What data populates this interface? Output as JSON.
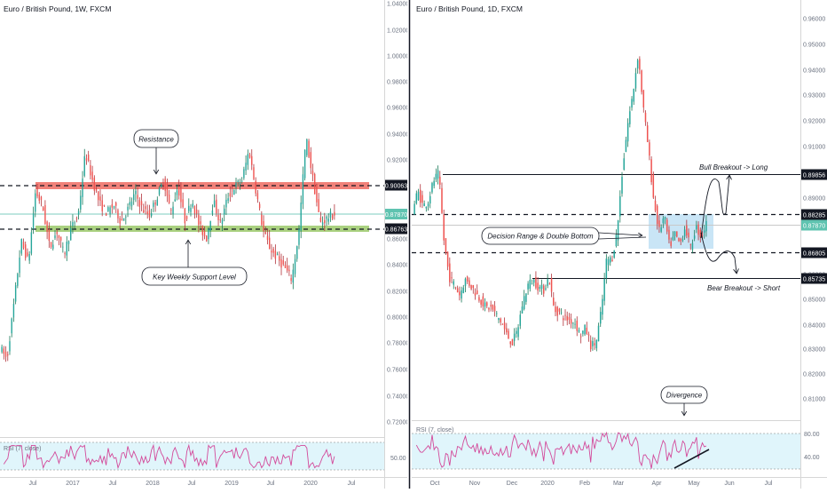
{
  "colors": {
    "bull": "#26a69a",
    "bear": "#ef5350",
    "bull_dark": "#1b7a5a",
    "bear_dark": "#b2323a",
    "resistance_zone": "#f0736a",
    "support_zone": "#9bc96a",
    "range_box": "#bfe0f5",
    "rsi_band": "#e0f5fb",
    "rsi_line": "#d3499a",
    "price_tag": "#5fc3b0",
    "level_tag": "#131722",
    "axis_text": "#6b7280",
    "grid": "#e6e6e6"
  },
  "left_chart": {
    "title": "Euro / British Pound, 1W, FXCM",
    "rsi_label": "RSI (7, close)",
    "rsi_value_label": "50.00",
    "annotations": {
      "resistance": "Resistance",
      "support": "Key Weekly Support Level"
    },
    "price_tags": {
      "resistance_level": "0.90063",
      "current_price": "0.87870",
      "support_level": "0.86763"
    }
  },
  "right_chart": {
    "title": "Euro / British Pound, 1D, FXCM",
    "rsi_label": "RSI (7, close)",
    "rsi_labels": [
      "80.00",
      "40.00"
    ],
    "annotations": {
      "bull": "Bull Breakout -> Long",
      "bear": "Bear Breakout -> Short",
      "range": "Decision Range & Double Bottom",
      "divergence": "Divergence"
    },
    "price_tags": {
      "bull_level": "0.89856",
      "range_top": "0.88285",
      "current_price": "0.87870",
      "range_bottom": "0.86805",
      "bear_level": "0.85735"
    }
  },
  "chart_data": [
    {
      "type": "candlestick",
      "title": "Euro / British Pound, 1W, FXCM",
      "x_tick_labels": [
        "Jul",
        "2017",
        "Jul",
        "2018",
        "Jul",
        "2019",
        "Jul",
        "2020",
        "Jul"
      ],
      "y_tick_labels": [
        "1.04000",
        "1.02000",
        "1.00000",
        "0.98000",
        "0.96000",
        "0.94000",
        "0.92000",
        "0.90000",
        "0.88000",
        "0.86000",
        "0.84000",
        "0.82000",
        "0.80000",
        "0.78000",
        "0.76000",
        "0.74000",
        "0.72000"
      ],
      "ylim": [
        0.712,
        1.043
      ],
      "levels": {
        "resistance": 0.90063,
        "support": 0.86763,
        "current": 0.8787
      },
      "zones": {
        "resistance": [
          0.8985,
          0.9035
        ],
        "support": [
          0.8648,
          0.8692
        ]
      },
      "price_path_waypoints": [
        0.777,
        0.768,
        0.812,
        0.858,
        0.842,
        0.896,
        0.885,
        0.853,
        0.866,
        0.848,
        0.868,
        0.878,
        0.926,
        0.905,
        0.887,
        0.88,
        0.886,
        0.873,
        0.883,
        0.895,
        0.883,
        0.878,
        0.891,
        0.905,
        0.88,
        0.9,
        0.874,
        0.89,
        0.87,
        0.86,
        0.889,
        0.871,
        0.892,
        0.9,
        0.905,
        0.928,
        0.896,
        0.866,
        0.852,
        0.845,
        0.838,
        0.829,
        0.865,
        0.938,
        0.905,
        0.872,
        0.876,
        0.879
      ],
      "rsi": {
        "name": "RSI (7, close)",
        "level_labels": [
          "50.00"
        ]
      }
    },
    {
      "type": "candlestick",
      "title": "Euro / British Pound, 1D, FXCM",
      "x_tick_labels": [
        "Oct",
        "Nov",
        "Dec",
        "2020",
        "Feb",
        "Mar",
        "Apr",
        "May",
        "Jun",
        "Jul"
      ],
      "y_tick_labels": [
        "0.96000",
        "0.95000",
        "0.94000",
        "0.93000",
        "0.92000",
        "0.91000",
        "0.90000",
        "0.89000",
        "0.88000",
        "0.87000",
        "0.86000",
        "0.85000",
        "0.84000",
        "0.83000",
        "0.82000",
        "0.81000"
      ],
      "ylim": [
        0.8045,
        0.9623
      ],
      "levels": {
        "bull_breakout": 0.89856,
        "range_top": 0.88285,
        "current": 0.8787,
        "range_bottom": 0.86805,
        "bear_breakout": 0.85735
      },
      "price_path_waypoints": [
        0.884,
        0.892,
        0.886,
        0.888,
        0.896,
        0.899,
        0.872,
        0.858,
        0.855,
        0.851,
        0.857,
        0.855,
        0.852,
        0.849,
        0.846,
        0.846,
        0.843,
        0.84,
        0.835,
        0.832,
        0.837,
        0.848,
        0.855,
        0.857,
        0.854,
        0.853,
        0.858,
        0.845,
        0.844,
        0.842,
        0.841,
        0.84,
        0.835,
        0.838,
        0.831,
        0.832,
        0.845,
        0.865,
        0.865,
        0.876,
        0.9,
        0.918,
        0.93,
        0.946,
        0.925,
        0.908,
        0.888,
        0.876,
        0.882,
        0.87,
        0.875,
        0.871,
        0.878,
        0.869,
        0.878,
        0.874,
        0.879
      ],
      "rsi": {
        "name": "RSI (7, close)",
        "level_labels": [
          "80.00",
          "40.00"
        ]
      }
    }
  ]
}
